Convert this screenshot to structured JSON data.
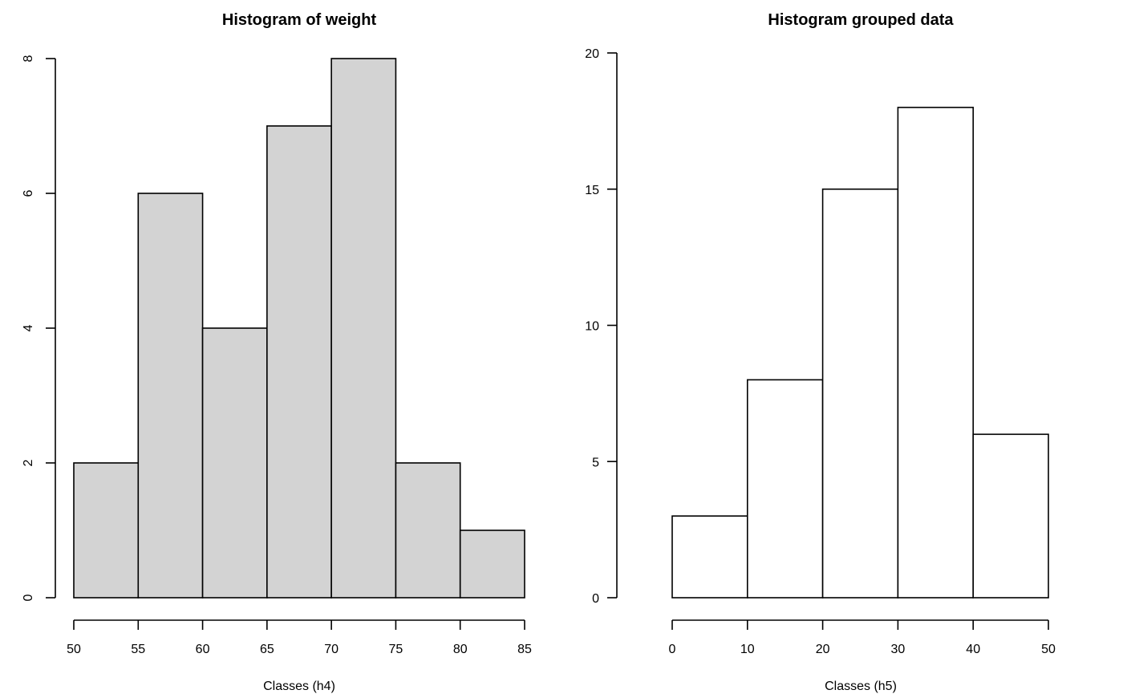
{
  "chart_data": [
    {
      "type": "bar",
      "title": "Histogram of weight",
      "xlabel": "Classes (h4)",
      "ylabel": "",
      "bins": [
        [
          50,
          55
        ],
        [
          55,
          60
        ],
        [
          60,
          65
        ],
        [
          65,
          70
        ],
        [
          70,
          75
        ],
        [
          75,
          80
        ],
        [
          80,
          85
        ]
      ],
      "values": [
        2,
        6,
        4,
        7,
        8,
        2,
        1
      ],
      "xlim": [
        50,
        85
      ],
      "ylim": [
        0,
        8
      ],
      "x_ticks": [
        50,
        55,
        60,
        65,
        70,
        75,
        80,
        85
      ],
      "y_ticks": [
        0,
        2,
        4,
        6,
        8
      ],
      "y_tick_rotation": "vertical",
      "bar_fill": "#d3d3d3",
      "bar_stroke": "#000000",
      "grid": false,
      "legend": "none"
    },
    {
      "type": "bar",
      "title": "Histogram grouped data",
      "xlabel": "Classes (h5)",
      "ylabel": "",
      "bins": [
        [
          0,
          10
        ],
        [
          10,
          20
        ],
        [
          20,
          30
        ],
        [
          30,
          40
        ],
        [
          40,
          50
        ]
      ],
      "values": [
        3,
        8,
        15,
        18,
        6
      ],
      "xlim": [
        0,
        50
      ],
      "ylim": [
        0,
        20
      ],
      "x_ticks": [
        0,
        10,
        20,
        30,
        40,
        50
      ],
      "y_ticks": [
        0,
        5,
        10,
        15,
        20
      ],
      "y_tick_rotation": "horizontal",
      "bar_fill": "#ffffff",
      "bar_stroke": "#000000",
      "grid": false,
      "legend": "none"
    }
  ]
}
